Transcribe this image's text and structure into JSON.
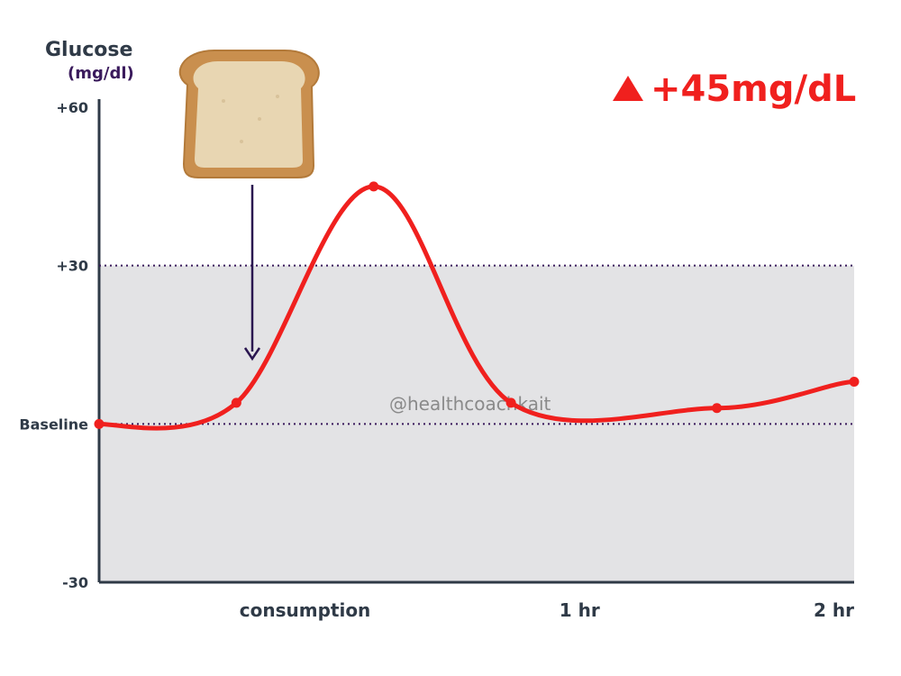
{
  "chart_data": {
    "type": "line",
    "ylabel": "Glucose",
    "yunit": "(mg/dl)",
    "xlabel": "",
    "ylim": [
      -30,
      60
    ],
    "xlim": [
      -45,
      120
    ],
    "y_ticks": [
      {
        "value": 60,
        "label": "+60"
      },
      {
        "value": 30,
        "label": "+30"
      },
      {
        "value": 0,
        "label": "Baseline"
      },
      {
        "value": -30,
        "label": "-30"
      }
    ],
    "x_ticks": [
      {
        "value": 0,
        "label": "consumption"
      },
      {
        "value": 60,
        "label": "1 hr"
      },
      {
        "value": 120,
        "label": "2 hr"
      }
    ],
    "reference_lines": [
      30,
      0
    ],
    "shaded_band": [
      -30,
      30
    ],
    "series": [
      {
        "color": "#f0201e",
        "points": [
          {
            "x": -45,
            "y": 0
          },
          {
            "x": -15,
            "y": 4
          },
          {
            "x": 15,
            "y": 45
          },
          {
            "x": 45,
            "y": 4
          },
          {
            "x": 90,
            "y": 3
          },
          {
            "x": 120,
            "y": 8
          }
        ]
      }
    ],
    "annotations": {
      "peak_change": "+45mg/dL",
      "event_marker": {
        "x": -15,
        "icon": "bread-slice-icon"
      }
    },
    "colors": {
      "line": "#f0201e",
      "band": "#e3e3e5",
      "ref_line": "#3a1a5c",
      "axis": "#2f3a47",
      "callout": "#f0201e"
    }
  },
  "watermark": "@healthcoachkait"
}
